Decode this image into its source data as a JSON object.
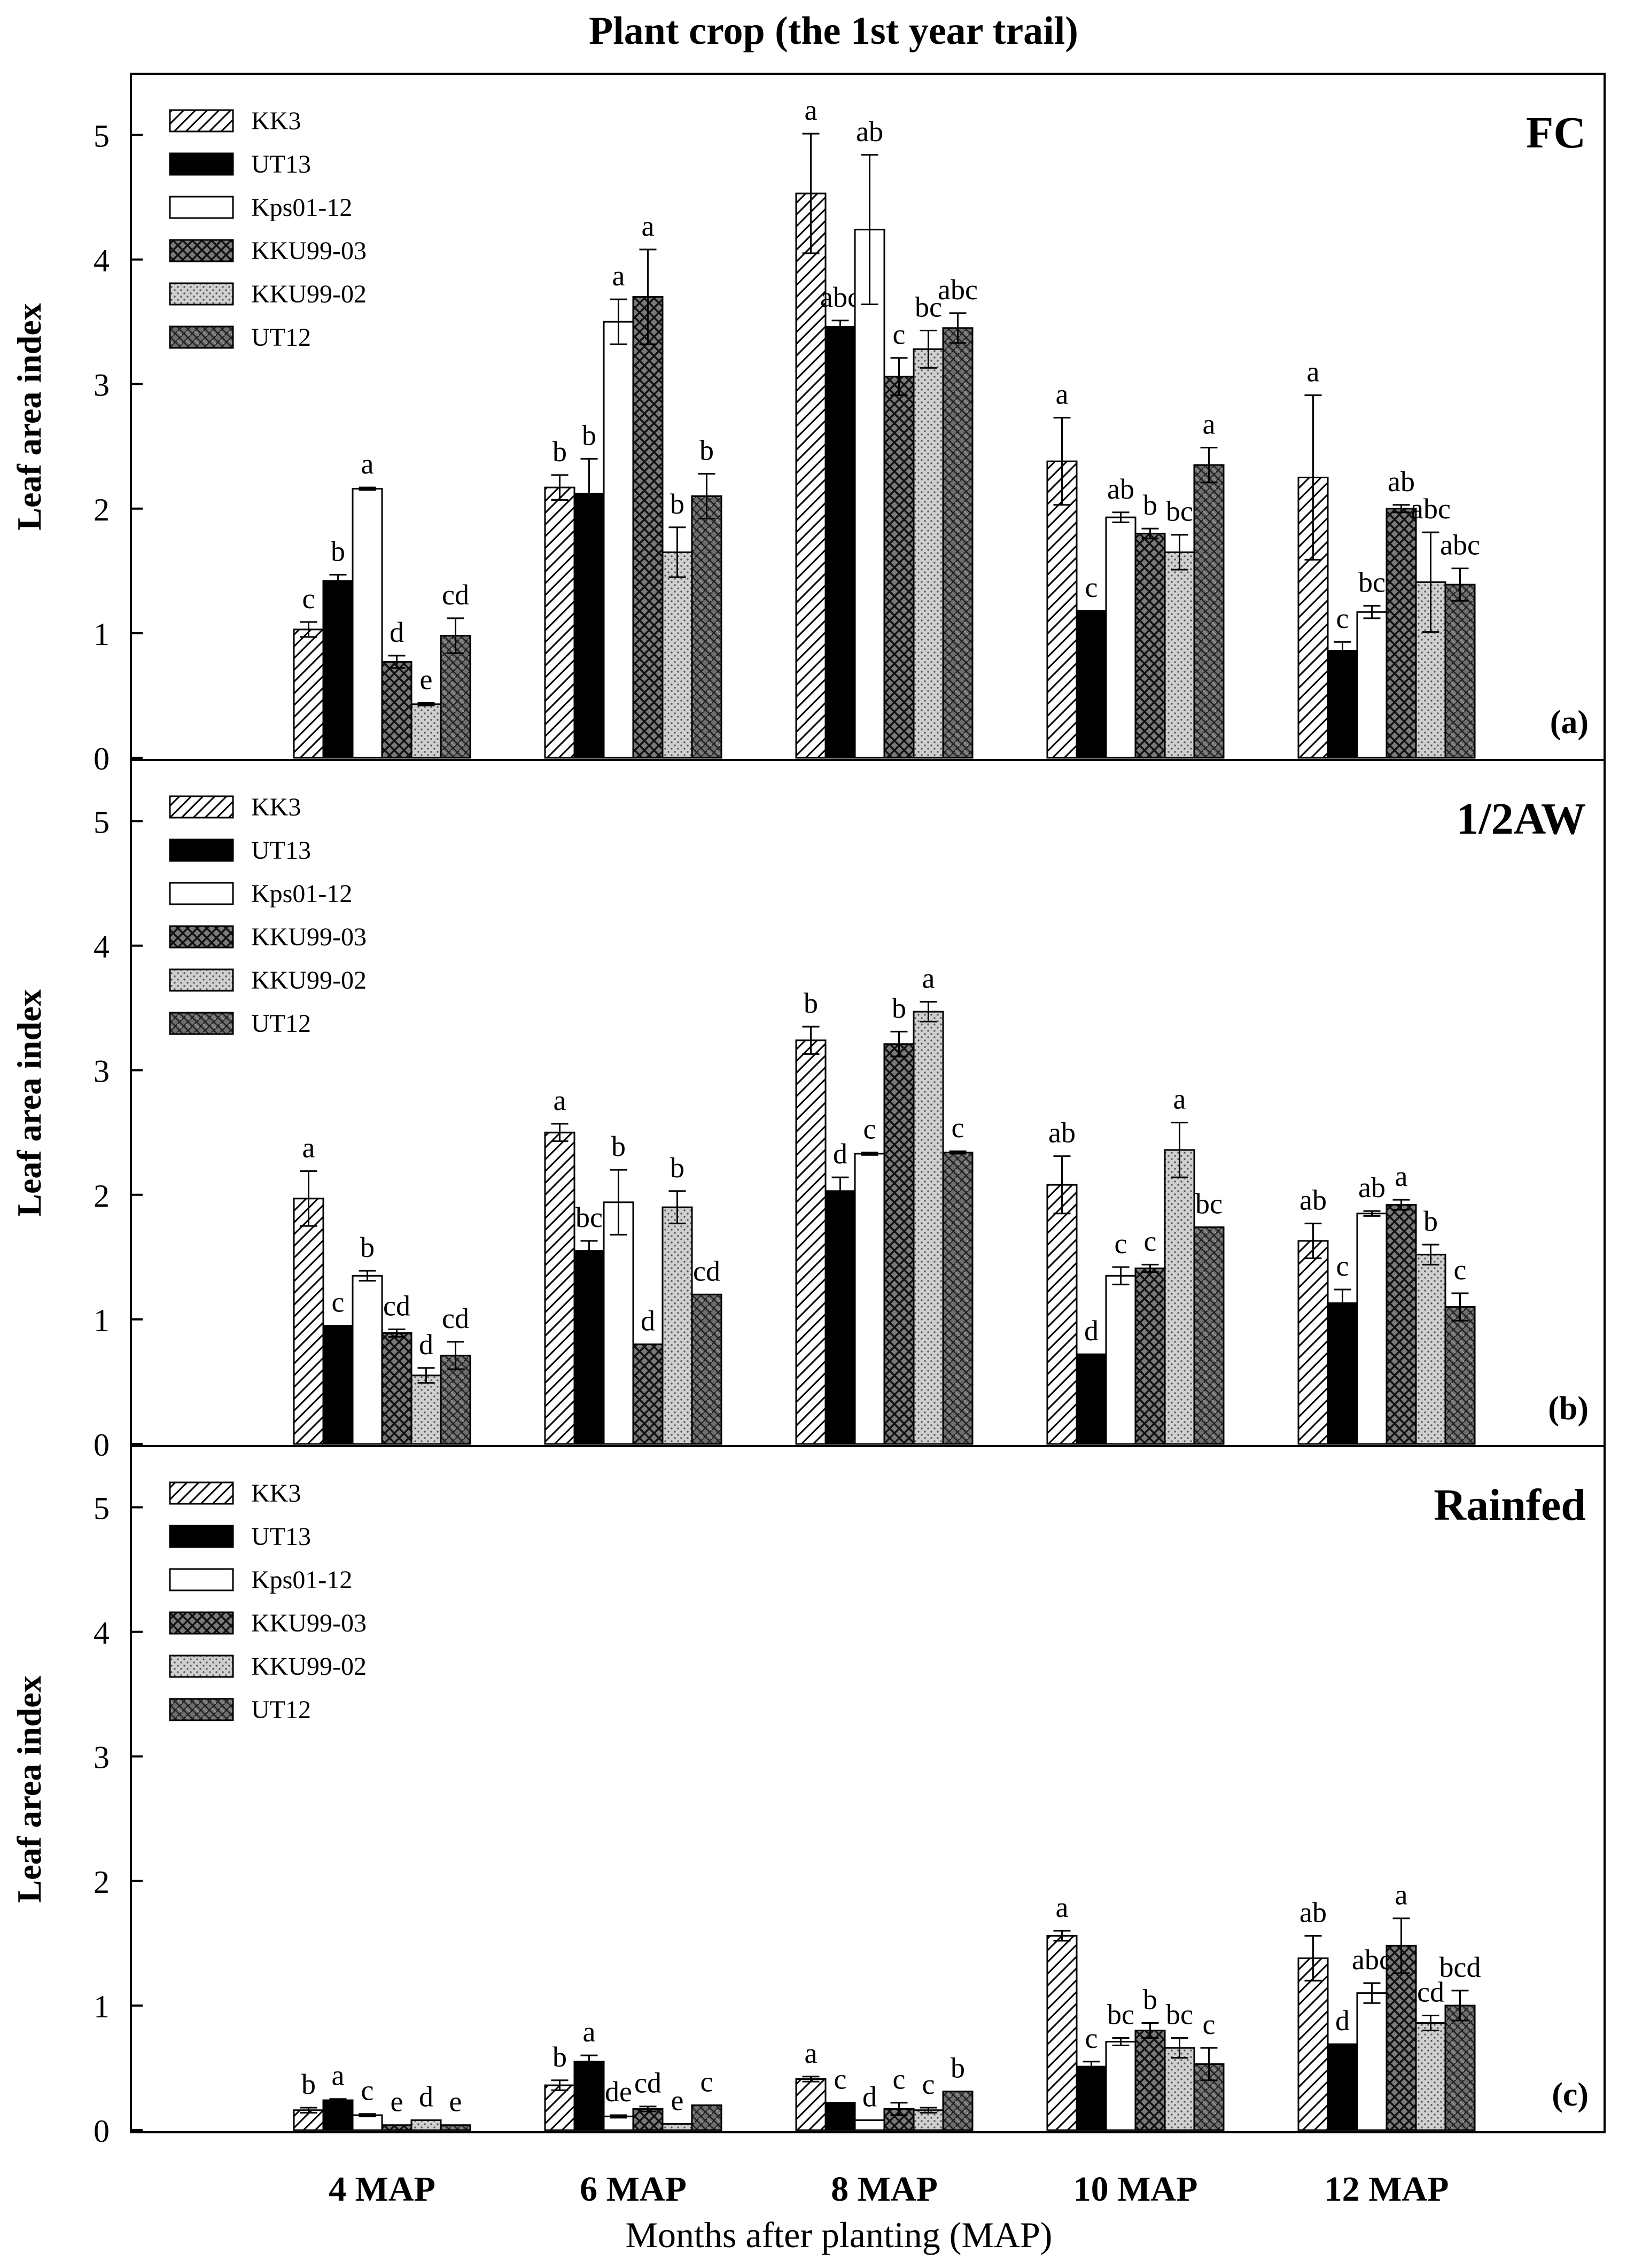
{
  "chart_data": {
    "type": "bar",
    "title": "Plant crop (the 1st year trail)",
    "xlabel": "Months after planting (MAP)",
    "ylabel": "Leaf area index",
    "categories": [
      "4 MAP",
      "6 MAP",
      "8 MAP",
      "10 MAP",
      "12 MAP"
    ],
    "ylim": [
      0,
      5.5
    ],
    "yticks": [
      0,
      1,
      2,
      3,
      4,
      5
    ],
    "series_names": [
      "KK3",
      "UT13",
      "Kps01-12",
      "KKU99-03",
      "KKU99-02",
      "UT12"
    ],
    "panels": [
      {
        "name": "FC",
        "tag": "(a)",
        "series": [
          {
            "name": "KK3",
            "values": [
              1.03,
              2.17,
              4.53,
              2.38,
              2.25
            ],
            "errors": [
              0.06,
              0.1,
              0.48,
              0.35,
              0.66
            ],
            "letters": [
              "c",
              "b",
              "a",
              "a",
              "a"
            ]
          },
          {
            "name": "UT13",
            "values": [
              1.42,
              2.12,
              3.46,
              1.18,
              0.86
            ],
            "errors": [
              0.05,
              0.28,
              0.05,
              0.0,
              0.07
            ],
            "letters": [
              "b",
              "b",
              "abc",
              "c",
              "c"
            ]
          },
          {
            "name": "Kps01-12",
            "values": [
              2.16,
              3.5,
              4.24,
              1.93,
              1.17
            ],
            "errors": [
              0.01,
              0.18,
              0.6,
              0.04,
              0.05
            ],
            "letters": [
              "a",
              "a",
              "ab",
              "ab",
              "bc"
            ]
          },
          {
            "name": "KKU99-03",
            "values": [
              0.77,
              3.7,
              3.06,
              1.8,
              2.0
            ],
            "errors": [
              0.05,
              0.38,
              0.15,
              0.04,
              0.03
            ],
            "letters": [
              "d",
              "a",
              "c",
              "b",
              "ab"
            ]
          },
          {
            "name": "KKU99-02",
            "values": [
              0.43,
              1.65,
              3.28,
              1.65,
              1.41
            ],
            "errors": [
              0.01,
              0.2,
              0.15,
              0.14,
              0.4
            ],
            "letters": [
              "e",
              "b",
              "bc",
              "bc",
              "abc"
            ]
          },
          {
            "name": "UT12",
            "values": [
              0.98,
              2.1,
              3.45,
              2.35,
              1.39
            ],
            "errors": [
              0.14,
              0.18,
              0.12,
              0.14,
              0.13
            ],
            "letters": [
              "cd",
              "b",
              "abc",
              "a",
              "abc"
            ]
          }
        ]
      },
      {
        "name": "1/2AW",
        "tag": "(b)",
        "series": [
          {
            "name": "KK3",
            "values": [
              1.97,
              2.5,
              3.24,
              2.08,
              1.63
            ],
            "errors": [
              0.22,
              0.07,
              0.11,
              0.23,
              0.14
            ],
            "letters": [
              "a",
              "a",
              "b",
              "ab",
              "ab"
            ]
          },
          {
            "name": "UT13",
            "values": [
              0.95,
              1.55,
              2.03,
              0.72,
              1.13
            ],
            "errors": [
              0.0,
              0.08,
              0.11,
              0.0,
              0.11
            ],
            "letters": [
              "c",
              "bc",
              "d",
              "d",
              "c"
            ]
          },
          {
            "name": "Kps01-12",
            "values": [
              1.35,
              1.94,
              2.33,
              1.35,
              1.85
            ],
            "errors": [
              0.04,
              0.26,
              0.01,
              0.07,
              0.02
            ],
            "letters": [
              "b",
              "b",
              "c",
              "c",
              "ab"
            ]
          },
          {
            "name": "KKU99-03",
            "values": [
              0.89,
              0.8,
              3.21,
              1.41,
              1.92
            ],
            "errors": [
              0.03,
              0.0,
              0.1,
              0.03,
              0.04
            ],
            "letters": [
              "cd",
              "d",
              "b",
              "c",
              "a"
            ]
          },
          {
            "name": "KKU99-02",
            "values": [
              0.55,
              1.9,
              3.47,
              2.36,
              1.52
            ],
            "errors": [
              0.06,
              0.13,
              0.08,
              0.22,
              0.08
            ],
            "letters": [
              "d",
              "b",
              "a",
              "a",
              "b"
            ]
          },
          {
            "name": "UT12",
            "values": [
              0.71,
              1.2,
              2.34,
              1.74,
              1.1
            ],
            "errors": [
              0.11,
              0.0,
              0.01,
              0.0,
              0.11
            ],
            "letters": [
              "cd",
              "cd",
              "c",
              "bc",
              "c"
            ]
          }
        ]
      },
      {
        "name": "Rainfed",
        "tag": "(c)",
        "series": [
          {
            "name": "KK3",
            "values": [
              0.16,
              0.36,
              0.41,
              1.56,
              1.38
            ],
            "errors": [
              0.02,
              0.04,
              0.02,
              0.04,
              0.18
            ],
            "letters": [
              "b",
              "b",
              "a",
              "a",
              "ab"
            ]
          },
          {
            "name": "UT13",
            "values": [
              0.24,
              0.55,
              0.22,
              0.51,
              0.69
            ],
            "errors": [
              0.01,
              0.05,
              0.0,
              0.04,
              0.0
            ],
            "letters": [
              "a",
              "a",
              "c",
              "c",
              "d"
            ]
          },
          {
            "name": "Kps01-12",
            "values": [
              0.12,
              0.11,
              0.08,
              0.71,
              1.1
            ],
            "errors": [
              0.01,
              0.01,
              0.0,
              0.03,
              0.08
            ],
            "letters": [
              "c",
              "de",
              "d",
              "bc",
              "abc"
            ]
          },
          {
            "name": "KKU99-03",
            "values": [
              0.04,
              0.17,
              0.17,
              0.8,
              1.48
            ],
            "errors": [
              0.0,
              0.02,
              0.05,
              0.06,
              0.22
            ],
            "letters": [
              "e",
              "cd",
              "c",
              "b",
              "a"
            ]
          },
          {
            "name": "KKU99-02",
            "values": [
              0.08,
              0.05,
              0.16,
              0.66,
              0.86
            ],
            "errors": [
              0.0,
              0.0,
              0.02,
              0.08,
              0.06
            ],
            "letters": [
              "d",
              "e",
              "c",
              "bc",
              "cd"
            ]
          },
          {
            "name": "UT12",
            "values": [
              0.04,
              0.2,
              0.31,
              0.53,
              1.0
            ],
            "errors": [
              0.0,
              0.0,
              0.0,
              0.13,
              0.12
            ],
            "letters": [
              "e",
              "c",
              "b",
              "c",
              "bcd"
            ]
          }
        ]
      }
    ]
  }
}
